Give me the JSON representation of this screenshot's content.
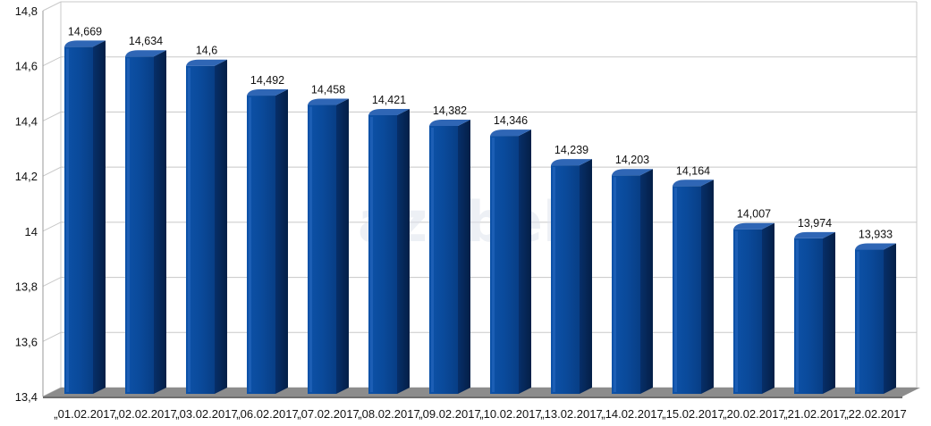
{
  "chart_data": {
    "type": "bar",
    "categories": [
      "„01.02.2017",
      "„02.02.2017",
      "„03.02.2017",
      "„06.02.2017",
      "„07.02.2017",
      "„08.02.2017",
      "„09.02.2017",
      "„10.02.2017",
      "„13.02.2017",
      "„14.02.2017",
      "„15.02.2017",
      "„20.02.2017",
      "„21.02.2017",
      "„22.02.2017"
    ],
    "values": [
      14.669,
      14.634,
      14.6,
      14.492,
      14.458,
      14.421,
      14.382,
      14.346,
      14.239,
      14.203,
      14.164,
      14.007,
      13.974,
      13.933
    ],
    "data_labels": [
      "14,669",
      "14,634",
      "14,6",
      "14,492",
      "14,458",
      "14,421",
      "14,382",
      "14,346",
      "14,239",
      "14,203",
      "14,164",
      "14,007",
      "13,974",
      "13,933"
    ],
    "y_ticks": [
      13.4,
      13.6,
      13.8,
      14,
      14.2,
      14.4,
      14.6,
      14.8
    ],
    "y_tick_labels": [
      "13,4",
      "13,6",
      "13,8",
      "14",
      "14,2",
      "14,4",
      "14,6",
      "14,8"
    ],
    "ylim": [
      13.4,
      14.8
    ],
    "grid": true,
    "legend": false,
    "style": "3d-bars",
    "colors": {
      "bar_front": "#0b4a9a",
      "bar_side": "#062c63",
      "bar_top": "#2f66b5",
      "floor": "#8c8c8c",
      "grid": "#c8c8c8",
      "watermark": "#dfe5ee"
    },
    "watermark": "azobek"
  }
}
